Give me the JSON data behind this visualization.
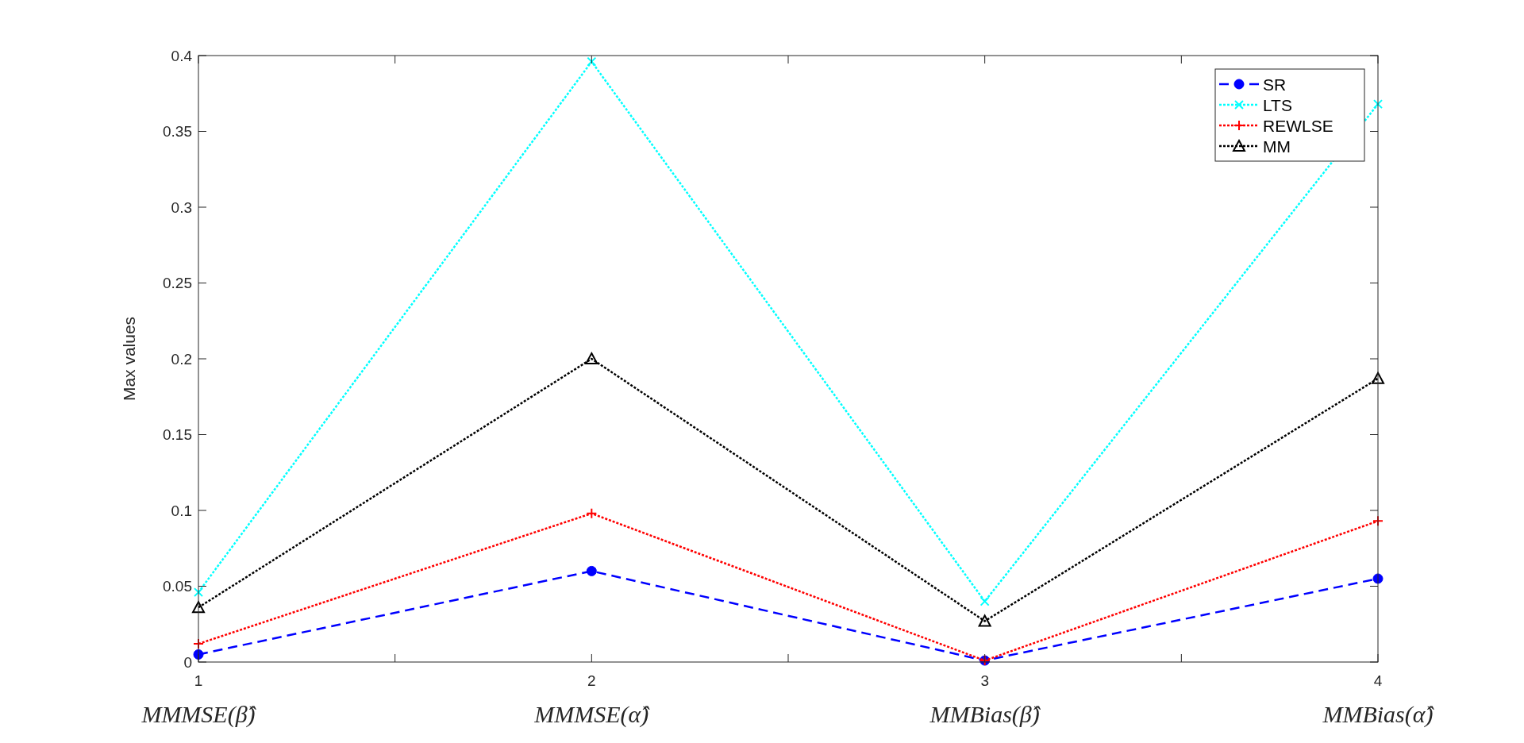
{
  "chart_data": {
    "type": "line",
    "ylabel": "Max values",
    "x": [
      1,
      2,
      3,
      4
    ],
    "xlim": [
      1,
      4
    ],
    "xticks": [
      1,
      {
        "value": 1.5,
        "label": null
      },
      2,
      {
        "value": 2.5,
        "label": null
      },
      3,
      {
        "value": 3.5,
        "label": null
      },
      4
    ],
    "ylim": [
      0,
      0.4
    ],
    "yticks": [
      0,
      0.05,
      0.1,
      0.15,
      0.2,
      0.25,
      0.3,
      0.35,
      0.4
    ],
    "grid": false,
    "legend": "top right",
    "series": [
      {
        "name": "SR",
        "color": "#0000ff",
        "values": [
          0.005,
          0.06,
          0.001,
          0.055
        ],
        "marker": "circle",
        "line_style": "dashed"
      },
      {
        "name": "LTS",
        "color": "#00ffff",
        "values": [
          0.046,
          0.396,
          0.04,
          0.368
        ],
        "marker": "x",
        "line_style": "dotted"
      },
      {
        "name": "REWLSE",
        "color": "#ff0000",
        "values": [
          0.012,
          0.098,
          0.001,
          0.093
        ],
        "marker": "cross",
        "line_style": "dotted"
      },
      {
        "name": "MM",
        "color": "#000000",
        "values": [
          0.036,
          0.2,
          0.027,
          0.187
        ],
        "marker": "triangle",
        "line_style": "dotted"
      }
    ],
    "annotations": [
      "MMMSE(β̂)",
      "MMMSE(α̂)",
      "MMBias(β̂)",
      "MMBias(α̂)"
    ]
  }
}
